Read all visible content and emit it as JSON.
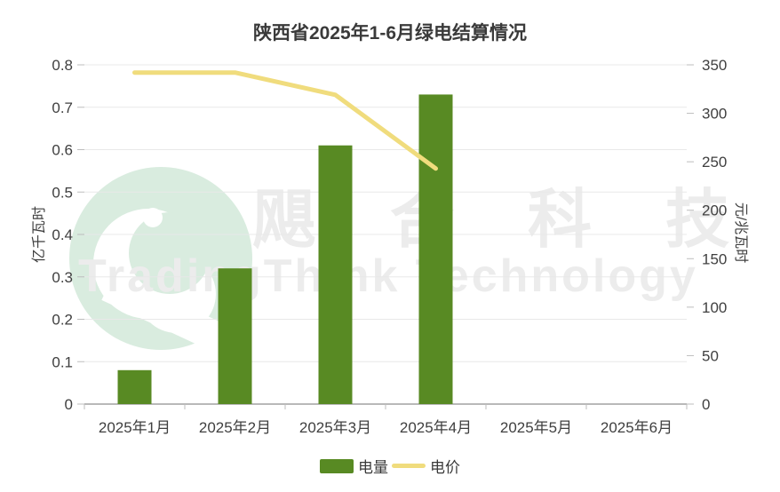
{
  "watermark": {
    "logo": "swirl-bird-logo",
    "chinese": "飓合科技",
    "english": "TradingThink Technology",
    "text_color": "#ececec",
    "logo_color": "#d9ecdf"
  },
  "chart_data": {
    "type": "combo",
    "title": "陕西省2025年1-6月绿电结算情况",
    "categories": [
      "2025年1月",
      "2025年2月",
      "2025年3月",
      "2025年4月",
      "2025年5月",
      "2025年6月"
    ],
    "series": [
      {
        "name": "电量",
        "type": "bar",
        "axis": "left",
        "color": "#588a23",
        "values": [
          0.08,
          0.32,
          0.61,
          0.73,
          null,
          null
        ]
      },
      {
        "name": "电价",
        "type": "line",
        "axis": "right",
        "color": "#f0dc7d",
        "values": [
          342,
          342,
          319,
          243,
          null,
          null
        ]
      }
    ],
    "y_left": {
      "label": "亿千瓦时",
      "min": 0,
      "max": 0.8,
      "ticks": [
        "0",
        "0.1",
        "0.2",
        "0.3",
        "0.4",
        "0.5",
        "0.6",
        "0.7",
        "0.8"
      ]
    },
    "y_right": {
      "label": "元/兆瓦时",
      "min": 0,
      "max": 350,
      "ticks": [
        "0",
        "50",
        "100",
        "150",
        "200",
        "250",
        "300",
        "350"
      ]
    },
    "grid": true,
    "legend_position": "bottom",
    "style": {
      "grid_color": "#e8e8e8",
      "axis_color": "#b9b9b9",
      "tick_color": "#bdbdbd",
      "tick_label_color": "#3f3f3f",
      "tick_label_size": 17
    }
  }
}
